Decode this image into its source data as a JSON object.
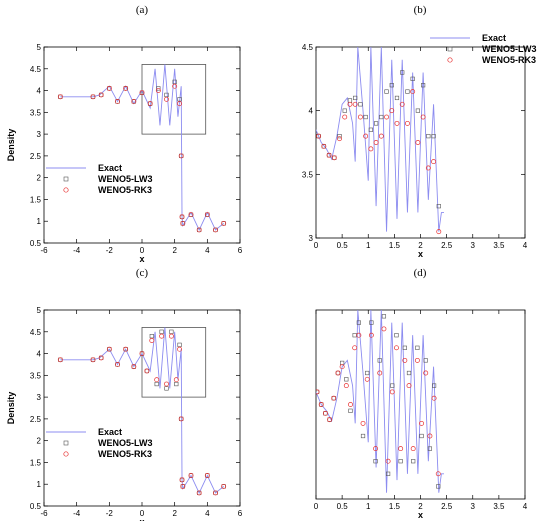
{
  "chart_data": [
    {
      "panel_label": "(a)",
      "type": "line",
      "xlabel": "x",
      "ylabel": "Density",
      "xlim": [
        -6,
        6
      ],
      "ylim": [
        0.5,
        5
      ],
      "xticks": [
        -6,
        -4,
        -2,
        0,
        2,
        4,
        6
      ],
      "yticks": [
        0.5,
        1,
        1.5,
        2,
        2.5,
        3,
        3.5,
        4,
        4.5,
        5
      ],
      "xtick_labels": [
        "-6",
        "-4",
        "-2",
        "0",
        "2",
        "4",
        "6"
      ],
      "ytick_labels": [
        "0.5",
        "1",
        "1.5",
        "2",
        "2.5",
        "3",
        "3.5",
        "4",
        "4.5",
        "5"
      ],
      "legend_position": "lower-left",
      "zoom_box": {
        "x": [
          0,
          3.9
        ],
        "y": [
          3,
          4.6
        ]
      },
      "series": [
        {
          "name": "Exact",
          "style": "line",
          "color": "#8c8cf0",
          "x": [
            -5,
            -3,
            -2.6,
            -2,
            -1.5,
            -1,
            -0.5,
            0,
            0.5,
            0.8,
            1.1,
            1.4,
            1.7,
            2.0,
            2.2,
            2.4,
            2.42,
            2.45,
            2.5,
            3.0,
            3.5,
            4.0,
            4.5,
            5.0
          ],
          "y": [
            3.857,
            3.857,
            3.9,
            4.1,
            3.75,
            4.1,
            3.7,
            4.0,
            3.6,
            4.5,
            3.2,
            4.6,
            3.2,
            4.5,
            3.4,
            4.1,
            2.9,
            1.1,
            0.9,
            1.2,
            0.8,
            1.2,
            0.8,
            0.95
          ]
        },
        {
          "name": "WENO5-LW3",
          "style": "square",
          "color": "#555555",
          "x": [
            -5,
            -3,
            -2.5,
            -2,
            -1.5,
            -1,
            -0.5,
            0,
            0.5,
            1.0,
            1.5,
            2.0,
            2.3,
            2.4,
            2.45,
            2.5,
            3.0,
            3.5,
            4.0,
            4.5,
            5.0
          ],
          "y": [
            3.857,
            3.857,
            3.9,
            4.05,
            3.75,
            4.05,
            3.75,
            3.95,
            3.7,
            4.05,
            3.9,
            4.2,
            3.8,
            2.5,
            1.1,
            0.95,
            1.15,
            0.8,
            1.15,
            0.8,
            0.95
          ]
        },
        {
          "name": "WENO5-RK3",
          "style": "circle",
          "color": "#e83030",
          "x": [
            -5,
            -3,
            -2.5,
            -2,
            -1.5,
            -1,
            -0.5,
            0,
            0.5,
            1.0,
            1.5,
            2.0,
            2.3,
            2.4,
            2.45,
            2.5,
            3.0,
            3.5,
            4.0,
            4.5,
            5.0
          ],
          "y": [
            3.857,
            3.857,
            3.9,
            4.05,
            3.75,
            4.05,
            3.75,
            3.95,
            3.7,
            4.0,
            3.8,
            4.1,
            3.7,
            2.5,
            1.1,
            0.95,
            1.15,
            0.8,
            1.15,
            0.8,
            0.95
          ]
        }
      ]
    },
    {
      "panel_label": "(b)",
      "type": "line",
      "xlabel": "x",
      "ylabel": "",
      "xlim": [
        0,
        4
      ],
      "ylim": [
        3,
        4.5
      ],
      "xticks": [
        0,
        0.5,
        1,
        1.5,
        2,
        2.5,
        3,
        3.5,
        4
      ],
      "yticks": [
        3,
        3.5,
        4,
        4.5
      ],
      "xtick_labels": [
        "0",
        "0.5",
        "1",
        "1.5",
        "2",
        "2.5",
        "3",
        "3.5",
        "4"
      ],
      "ytick_labels": [
        "3",
        "3.5",
        "4",
        "4.5"
      ],
      "legend_position": "top-right",
      "series": [
        {
          "name": "Exact",
          "style": "line",
          "color": "#8c8cf0",
          "x": [
            0,
            0.1,
            0.2,
            0.3,
            0.4,
            0.5,
            0.6,
            0.7,
            0.75,
            0.8,
            0.9,
            1.0,
            1.05,
            1.15,
            1.25,
            1.35,
            1.45,
            1.55,
            1.65,
            1.75,
            1.85,
            1.95,
            2.05,
            2.15,
            2.25,
            2.35,
            2.4,
            2.45
          ],
          "y": [
            3.85,
            3.75,
            3.7,
            3.62,
            3.8,
            4.05,
            4.1,
            3.9,
            3.6,
            4.5,
            4.0,
            3.45,
            4.5,
            3.25,
            4.5,
            3.05,
            4.4,
            3.15,
            4.4,
            3.2,
            4.3,
            3.2,
            4.3,
            3.3,
            4.05,
            3.05,
            3.2,
            3.2
          ]
        },
        {
          "name": "WENO5-LW3",
          "style": "square",
          "color": "#555555",
          "x": [
            0.05,
            0.15,
            0.25,
            0.35,
            0.45,
            0.55,
            0.65,
            0.75,
            0.85,
            0.95,
            1.05,
            1.15,
            1.25,
            1.35,
            1.45,
            1.55,
            1.65,
            1.75,
            1.85,
            1.95,
            2.05,
            2.15,
            2.25,
            2.35
          ],
          "y": [
            3.8,
            3.72,
            3.65,
            3.63,
            3.8,
            4.0,
            4.08,
            4.1,
            4.05,
            3.95,
            3.85,
            3.9,
            3.95,
            4.15,
            4.2,
            4.1,
            4.3,
            4.15,
            4.25,
            4.0,
            4.2,
            3.8,
            3.8,
            3.25
          ]
        },
        {
          "name": "WENO5-RK3",
          "style": "circle",
          "color": "#e83030",
          "x": [
            0.05,
            0.15,
            0.25,
            0.35,
            0.45,
            0.55,
            0.65,
            0.75,
            0.85,
            0.95,
            1.05,
            1.15,
            1.25,
            1.35,
            1.45,
            1.55,
            1.65,
            1.75,
            1.85,
            1.95,
            2.05,
            2.15,
            2.25,
            2.35
          ],
          "y": [
            3.8,
            3.72,
            3.65,
            3.63,
            3.78,
            3.95,
            4.05,
            4.05,
            3.95,
            3.8,
            3.7,
            3.75,
            3.8,
            3.95,
            4.0,
            3.9,
            4.05,
            3.9,
            4.15,
            3.75,
            3.95,
            3.55,
            3.6,
            3.05
          ]
        }
      ]
    },
    {
      "panel_label": "(c)",
      "type": "line",
      "xlabel": "x",
      "ylabel": "Density",
      "xlim": [
        -6,
        6
      ],
      "ylim": [
        0.5,
        5
      ],
      "xticks": [
        -6,
        -4,
        -2,
        0,
        2,
        4,
        6
      ],
      "yticks": [
        0.5,
        1,
        1.5,
        2,
        2.5,
        3,
        3.5,
        4,
        4.5,
        5
      ],
      "xtick_labels": [
        "-6",
        "-4",
        "-2",
        "0",
        "2",
        "4",
        "6"
      ],
      "ytick_labels": [
        "0.5",
        "1",
        "1.5",
        "2",
        "2.5",
        "3",
        "3.5",
        "4",
        "4.5",
        "5"
      ],
      "legend_position": "lower-left",
      "zoom_box": {
        "x": [
          0,
          3.9
        ],
        "y": [
          3,
          4.6
        ]
      },
      "series": [
        {
          "name": "Exact",
          "style": "line",
          "color": "#8c8cf0",
          "x": [
            -5,
            -3,
            -2.6,
            -2,
            -1.5,
            -1,
            -0.5,
            0,
            0.5,
            0.8,
            1.1,
            1.4,
            1.7,
            2.0,
            2.2,
            2.4,
            2.42,
            2.45,
            2.5,
            3.0,
            3.5,
            4.0,
            4.5,
            5.0
          ],
          "y": [
            3.857,
            3.857,
            3.9,
            4.1,
            3.75,
            4.1,
            3.7,
            4.0,
            3.6,
            4.5,
            3.2,
            4.6,
            3.2,
            4.5,
            3.4,
            4.1,
            2.9,
            1.1,
            0.9,
            1.2,
            0.8,
            1.2,
            0.8,
            0.95
          ]
        },
        {
          "name": "WENO5-LW3",
          "style": "square",
          "color": "#555555",
          "x": [
            -5,
            -3,
            -2.5,
            -2,
            -1.5,
            -1,
            -0.5,
            0,
            0.3,
            0.6,
            0.9,
            1.2,
            1.5,
            1.8,
            2.1,
            2.3,
            2.4,
            2.45,
            2.5,
            3.0,
            3.5,
            4.0,
            4.5,
            5.0
          ],
          "y": [
            3.857,
            3.857,
            3.9,
            4.1,
            3.75,
            4.1,
            3.7,
            4.0,
            3.6,
            4.4,
            3.3,
            4.5,
            3.2,
            4.5,
            3.3,
            4.2,
            2.5,
            1.1,
            0.95,
            1.2,
            0.8,
            1.2,
            0.8,
            0.95
          ]
        },
        {
          "name": "WENO5-RK3",
          "style": "circle",
          "color": "#e83030",
          "x": [
            -5,
            -3,
            -2.5,
            -2,
            -1.5,
            -1,
            -0.5,
            0,
            0.3,
            0.6,
            0.9,
            1.2,
            1.5,
            1.8,
            2.1,
            2.3,
            2.4,
            2.45,
            2.5,
            3.0,
            3.5,
            4.0,
            4.5,
            5.0
          ],
          "y": [
            3.857,
            3.857,
            3.9,
            4.1,
            3.75,
            4.1,
            3.7,
            4.0,
            3.6,
            4.3,
            3.4,
            4.4,
            3.3,
            4.4,
            3.4,
            4.1,
            2.5,
            1.1,
            0.95,
            1.2,
            0.8,
            1.2,
            0.8,
            0.95
          ]
        }
      ]
    },
    {
      "panel_label": "(d)",
      "type": "line",
      "xlabel": "x",
      "ylabel": "",
      "xlim": [
        0,
        4
      ],
      "ylim": [
        3,
        4.5
      ],
      "xticks": [
        0,
        0.5,
        1,
        1.5,
        2,
        2.5,
        3,
        3.5,
        4
      ],
      "yticks": [],
      "xtick_labels": [
        "0",
        "0.5",
        "1",
        "1.5",
        "2",
        "2.5",
        "3",
        "3.5",
        "4"
      ],
      "ytick_labels": [],
      "legend_position": "none",
      "series": [
        {
          "name": "Exact",
          "style": "line",
          "color": "#8c8cf0",
          "x": [
            0,
            0.1,
            0.2,
            0.3,
            0.4,
            0.5,
            0.6,
            0.7,
            0.75,
            0.8,
            0.9,
            1.0,
            1.05,
            1.15,
            1.25,
            1.35,
            1.45,
            1.55,
            1.65,
            1.75,
            1.85,
            1.95,
            2.05,
            2.15,
            2.25,
            2.35,
            2.4,
            2.45
          ],
          "y": [
            3.85,
            3.75,
            3.7,
            3.62,
            3.8,
            4.05,
            4.1,
            3.9,
            3.6,
            4.5,
            4.0,
            3.45,
            4.5,
            3.25,
            4.5,
            3.05,
            4.4,
            3.15,
            4.4,
            3.2,
            4.3,
            3.2,
            4.3,
            3.3,
            4.05,
            3.05,
            3.2,
            3.2
          ]
        },
        {
          "name": "WENO5-LW3",
          "style": "square",
          "color": "#555555",
          "x": [
            0.02,
            0.1,
            0.18,
            0.26,
            0.34,
            0.42,
            0.5,
            0.58,
            0.66,
            0.74,
            0.82,
            0.9,
            0.98,
            1.06,
            1.14,
            1.22,
            1.3,
            1.38,
            1.46,
            1.54,
            1.62,
            1.7,
            1.78,
            1.86,
            1.94,
            2.02,
            2.1,
            2.18,
            2.26,
            2.34
          ],
          "y": [
            3.85,
            3.75,
            3.68,
            3.63,
            3.8,
            4.0,
            4.08,
            3.95,
            3.7,
            4.3,
            4.4,
            3.5,
            4.0,
            4.4,
            3.3,
            4.1,
            4.45,
            3.2,
            3.9,
            4.3,
            3.3,
            4.2,
            4.0,
            3.3,
            4.2,
            3.5,
            4.1,
            3.4,
            3.9,
            3.1
          ]
        },
        {
          "name": "WENO5-RK3",
          "style": "circle",
          "color": "#e83030",
          "x": [
            0.02,
            0.1,
            0.18,
            0.26,
            0.34,
            0.42,
            0.5,
            0.58,
            0.66,
            0.74,
            0.82,
            0.9,
            0.98,
            1.06,
            1.14,
            1.22,
            1.3,
            1.38,
            1.46,
            1.54,
            1.62,
            1.7,
            1.78,
            1.86,
            1.94,
            2.02,
            2.1,
            2.18,
            2.26,
            2.34
          ],
          "y": [
            3.85,
            3.75,
            3.68,
            3.63,
            3.8,
            4.0,
            4.05,
            3.9,
            3.75,
            4.2,
            4.3,
            3.6,
            3.95,
            4.3,
            3.4,
            4.0,
            4.35,
            3.3,
            3.85,
            4.2,
            3.4,
            4.1,
            3.9,
            3.4,
            4.1,
            3.6,
            4.0,
            3.5,
            3.8,
            3.2
          ]
        }
      ]
    }
  ]
}
